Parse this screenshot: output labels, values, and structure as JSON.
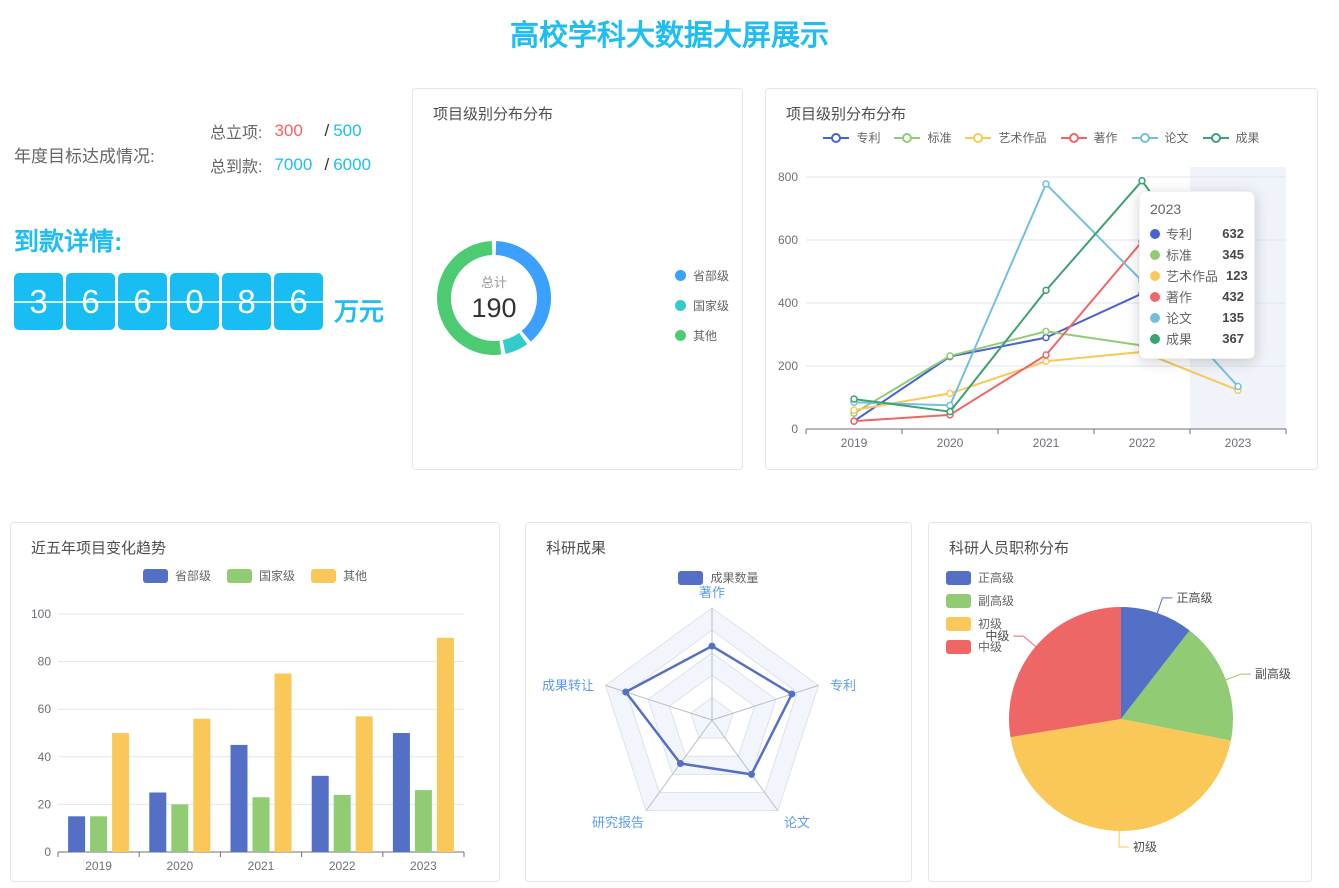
{
  "page": {
    "title": "高校学科大数据大屏展示",
    "accent_color": "#1ebdf2"
  },
  "annual_target": {
    "label": "年度目标达成情况:",
    "rows": [
      {
        "label": "总立项:",
        "current": "300",
        "separator": "/",
        "target": "500",
        "current_color": "#ff5c5c",
        "target_color": "#1ebdf2"
      },
      {
        "label": "总到款:",
        "current": "7000",
        "separator": "/",
        "target": "6000",
        "current_color": "#1ebdf2",
        "target_color": "#1ebdf2"
      }
    ]
  },
  "arrival_detail": {
    "title": "到款详情:",
    "digits": [
      "3",
      "6",
      "6",
      "0",
      "8",
      "6"
    ],
    "unit": "万元",
    "box_color": "#18bdf3"
  },
  "chart_data": [
    {
      "id": "donut",
      "type": "pie",
      "variant": "donut",
      "title": "项目级别分布分布",
      "center_label": "总计",
      "center_value": "190",
      "categories": [
        "省部级",
        "国家级",
        "其他"
      ],
      "values": [
        75,
        15,
        100
      ],
      "colors": [
        "#3ba0ff",
        "#36cbcb",
        "#4dcb73"
      ],
      "legend_position": "right"
    },
    {
      "id": "line",
      "type": "line",
      "title": "项目级别分布分布",
      "x": [
        "2019",
        "2020",
        "2021",
        "2022",
        "2023"
      ],
      "series": [
        {
          "name": "专利",
          "color": "#4763d2",
          "values": [
            25,
            230,
            290,
            430,
            632
          ]
        },
        {
          "name": "标准",
          "color": "#91cc75",
          "values": [
            50,
            232,
            310,
            265,
            345
          ]
        },
        {
          "name": "艺术作品",
          "color": "#fac858",
          "values": [
            60,
            113,
            215,
            245,
            123
          ]
        },
        {
          "name": "著作",
          "color": "#ee6666",
          "values": [
            25,
            45,
            235,
            595,
            432
          ]
        },
        {
          "name": "论文",
          "color": "#73c0de",
          "values": [
            85,
            75,
            778,
            470,
            135
          ]
        },
        {
          "name": "成果",
          "color": "#3ba272",
          "values": [
            95,
            55,
            440,
            788,
            367
          ]
        }
      ],
      "ylim": [
        0,
        800
      ],
      "yticks": [
        0,
        200,
        400,
        600,
        800
      ],
      "highlight_category": "2023",
      "tooltip": {
        "header": "2023",
        "rows": [
          {
            "name": "专利",
            "value": "632"
          },
          {
            "name": "标准",
            "value": "345"
          },
          {
            "name": "艺术作品",
            "value": "123"
          },
          {
            "name": "著作",
            "value": "432"
          },
          {
            "name": "论文",
            "value": "135"
          },
          {
            "name": "成果",
            "value": "367"
          }
        ]
      }
    },
    {
      "id": "bar",
      "type": "bar",
      "title": "近五年项目变化趋势",
      "categories": [
        "2019",
        "2020",
        "2021",
        "2022",
        "2023"
      ],
      "series": [
        {
          "name": "省部级",
          "color": "#5470c6",
          "values": [
            15,
            25,
            45,
            32,
            50
          ]
        },
        {
          "name": "国家级",
          "color": "#91cc75",
          "values": [
            15,
            20,
            23,
            24,
            26
          ]
        },
        {
          "name": "其他",
          "color": "#fac858",
          "values": [
            50,
            56,
            75,
            57,
            90
          ]
        }
      ],
      "ylim": [
        0,
        100
      ],
      "yticks": [
        0,
        20,
        40,
        60,
        80,
        100
      ]
    },
    {
      "id": "radar",
      "type": "radar",
      "title": "科研成果",
      "legend": [
        {
          "name": "成果数量",
          "color": "#5470c6"
        }
      ],
      "indicators": [
        "著作",
        "专利",
        "论文",
        "研究报告",
        "成果转让"
      ],
      "max": 100,
      "values": [
        66,
        75,
        60,
        48,
        81
      ],
      "axis_label_color": "#5c9bef"
    },
    {
      "id": "pie",
      "type": "pie",
      "title": "科研人员职称分布",
      "categories": [
        "正高级",
        "副高级",
        "初级",
        "中级"
      ],
      "values": [
        10.5,
        17.6,
        44.3,
        27.6
      ],
      "value_unit": "percent",
      "colors": [
        "#5470c6",
        "#91cc75",
        "#fac858",
        "#ee6666"
      ],
      "legend_position": "left"
    }
  ]
}
